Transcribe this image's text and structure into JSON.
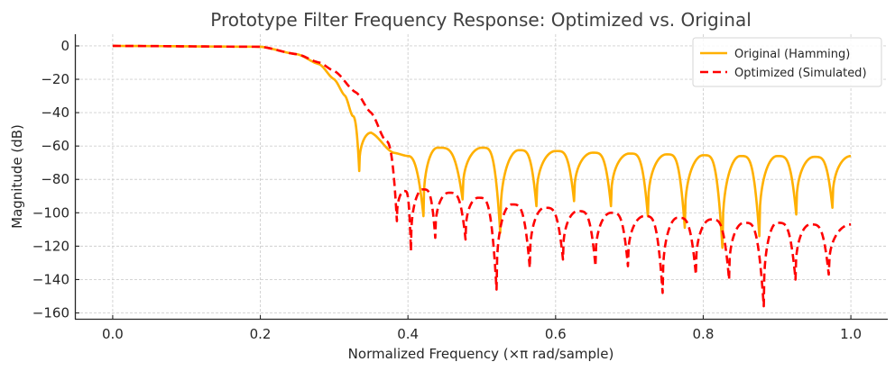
{
  "chart_data": {
    "type": "line",
    "title": "Prototype Filter Frequency Response: Optimized vs. Original",
    "xlabel": "Normalized Frequency (×π rad/sample)",
    "ylabel": "Magnitude (dB)",
    "xlim": [
      -0.05,
      1.05
    ],
    "ylim": [
      -163.5,
      7
    ],
    "xticks": [
      0.0,
      0.2,
      0.4,
      0.6,
      0.8,
      1.0
    ],
    "xtick_labels": [
      "0.0",
      "0.2",
      "0.4",
      "0.6",
      "0.8",
      "1.0"
    ],
    "yticks": [
      0,
      -20,
      -40,
      -60,
      -80,
      -100,
      -120,
      -140,
      -160
    ],
    "ytick_labels": [
      "0",
      "−20",
      "−40",
      "−60",
      "−80",
      "−100",
      "−120",
      "−140",
      "−160"
    ],
    "grid": true,
    "legend_position": "top-right",
    "series": [
      {
        "name": "Original (Hamming)",
        "color": "#FFB000",
        "style": "solid",
        "x": [
          0.0,
          0.2,
          0.25,
          0.28,
          0.3,
          0.315,
          0.325,
          0.334,
          0.35,
          0.38,
          0.4,
          0.421,
          0.44,
          0.474,
          0.5,
          0.525,
          0.55,
          0.574,
          0.6,
          0.625,
          0.65,
          0.675,
          0.7,
          0.725,
          0.75,
          0.775,
          0.8,
          0.826,
          0.85,
          0.876,
          0.9,
          0.926,
          0.95,
          0.975,
          1.0
        ],
        "y": [
          0,
          -0.5,
          -5,
          -11,
          -20,
          -30,
          -42,
          -75,
          -52,
          -64,
          -66,
          -102,
          -61,
          -92,
          -61,
          -112,
          -62.5,
          -96,
          -63,
          -93,
          -64,
          -96,
          -64.5,
          -102,
          -65,
          -109,
          -65.5,
          -121,
          -66,
          -114,
          -66,
          -101,
          -66.5,
          -97,
          -66
        ],
        "kind": [
          "s",
          "s",
          "s",
          "s",
          "s",
          "s",
          "s",
          "n",
          "p",
          "s",
          "s",
          "n",
          "p",
          "n",
          "p",
          "n",
          "p",
          "n",
          "p",
          "n",
          "p",
          "n",
          "p",
          "n",
          "p",
          "n",
          "p",
          "n",
          "p",
          "n",
          "p",
          "n",
          "p",
          "n",
          "e"
        ]
      },
      {
        "name": "Optimized (Simulated)",
        "color": "#FF0000",
        "style": "dashed",
        "x": [
          0.0,
          0.2,
          0.25,
          0.28,
          0.3,
          0.33,
          0.35,
          0.37,
          0.385,
          0.395,
          0.404,
          0.42,
          0.437,
          0.455,
          0.478,
          0.495,
          0.52,
          0.54,
          0.565,
          0.585,
          0.61,
          0.63,
          0.654,
          0.675,
          0.698,
          0.72,
          0.745,
          0.765,
          0.79,
          0.81,
          0.835,
          0.855,
          0.882,
          0.9,
          0.925,
          0.945,
          0.97,
          1.0
        ],
        "y": [
          0,
          -0.5,
          -5,
          -10,
          -15,
          -28,
          -40,
          -57,
          -105,
          -87,
          -123,
          -86,
          -115,
          -88,
          -116,
          -91,
          -146,
          -95,
          -133,
          -97,
          -128,
          -99,
          -132,
          -100,
          -132,
          -102,
          -148,
          -103,
          -137,
          -104,
          -140,
          -106,
          -156,
          -106,
          -140,
          -107,
          -137,
          -107
        ],
        "kind": [
          "s",
          "s",
          "s",
          "s",
          "s",
          "s",
          "s",
          "s",
          "n",
          "p",
          "n",
          "p",
          "n",
          "p",
          "n",
          "p",
          "n",
          "p",
          "n",
          "p",
          "n",
          "p",
          "n",
          "p",
          "n",
          "p",
          "n",
          "p",
          "n",
          "p",
          "n",
          "p",
          "n",
          "p",
          "n",
          "p",
          "n",
          "e"
        ]
      }
    ]
  }
}
